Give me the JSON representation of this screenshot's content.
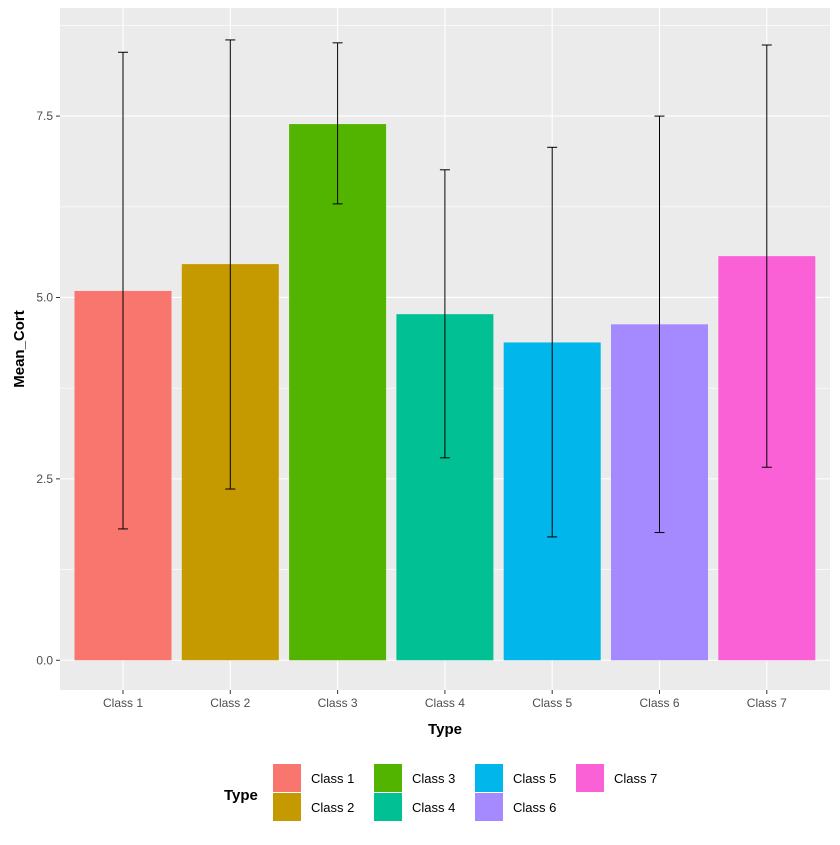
{
  "chart_data": {
    "type": "bar",
    "title": "",
    "xlabel": "Type",
    "ylabel": "Mean_Cort",
    "categories": [
      "Class 1",
      "Class 2",
      "Class 3",
      "Class 4",
      "Class 5",
      "Class 6",
      "Class 7"
    ],
    "values": [
      5.09,
      5.46,
      7.39,
      4.77,
      4.38,
      4.63,
      5.57
    ],
    "error_upper": [
      8.38,
      8.55,
      8.51,
      6.76,
      7.07,
      7.5,
      8.48
    ],
    "error_lower": [
      1.81,
      2.36,
      6.29,
      2.79,
      1.7,
      1.76,
      2.66
    ],
    "colors": [
      "#F8766D",
      "#C49A00",
      "#53B400",
      "#00C094",
      "#00B6EB",
      "#A58AFF",
      "#FB61D7"
    ],
    "yticks": [
      "0.0",
      "2.5",
      "5.0",
      "7.5"
    ],
    "ytick_values": [
      0,
      2.5,
      5,
      7.5
    ],
    "ylim": [
      -0.41,
      8.99
    ],
    "grid": true,
    "legend": {
      "title": "Type",
      "placement": "bottom",
      "entries": [
        "Class 1",
        "Class 2",
        "Class 3",
        "Class 4",
        "Class 5",
        "Class 6",
        "Class 7"
      ]
    }
  }
}
